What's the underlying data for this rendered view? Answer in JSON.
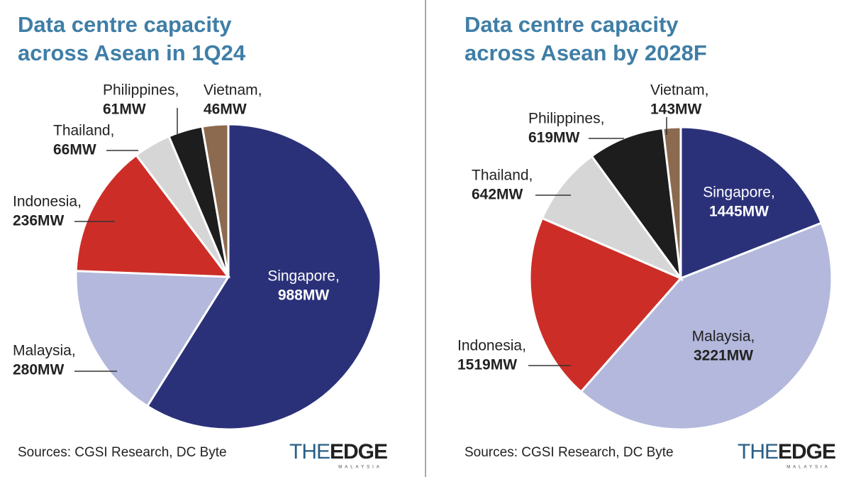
{
  "chart_data": [
    {
      "type": "pie",
      "title": [
        "Data centre capacity",
        "across Asean in 1Q24"
      ],
      "categories": [
        "Singapore,",
        "Malaysia,",
        "Indonesia,",
        "Thailand,",
        "Philippines,",
        "Vietnam,"
      ],
      "values": [
        988,
        280,
        236,
        66,
        61,
        46
      ],
      "value_labels": [
        "988MW",
        "280MW",
        "236MW",
        "66MW",
        "61MW",
        "46MW"
      ],
      "colors": [
        "#2b3179",
        "#b3b8dc",
        "#cc2e27",
        "#d6d6d6",
        "#1d1d1d",
        "#8c6a4f"
      ],
      "source": "Sources: CGSI Research, DC Byte",
      "brand": [
        "THE",
        "EDGE",
        "MALAYSIA"
      ]
    },
    {
      "type": "pie",
      "title": [
        "Data centre capacity",
        "across Asean by 2028F"
      ],
      "categories": [
        "Singapore,",
        "Malaysia,",
        "Indonesia,",
        "Thailand,",
        "Philippines,",
        "Vietnam,"
      ],
      "values": [
        1445,
        3221,
        1519,
        642,
        619,
        143
      ],
      "value_labels": [
        "1445MW",
        "3221MW",
        "1519MW",
        "642MW",
        "619MW",
        "143MW"
      ],
      "colors": [
        "#2b3179",
        "#b3b8dc",
        "#cc2e27",
        "#d6d6d6",
        "#1d1d1d",
        "#8c6a4f"
      ],
      "source": "Sources: CGSI Research, DC Byte",
      "brand": [
        "THE",
        "EDGE",
        "MALAYSIA"
      ]
    }
  ]
}
